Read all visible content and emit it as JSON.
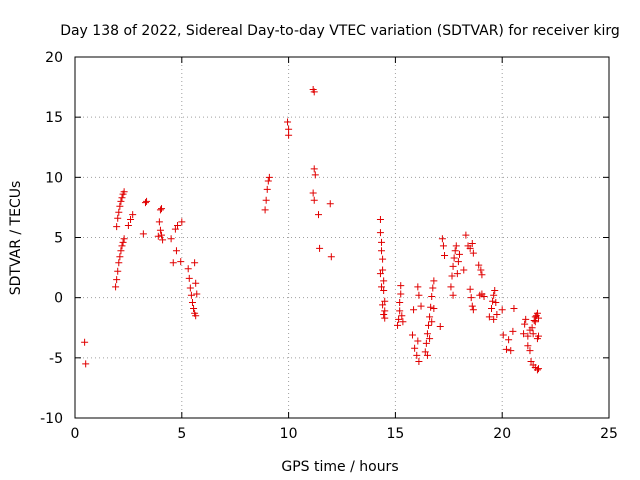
{
  "chart_data": {
    "type": "scatter",
    "title": "Day 138 of 2022, Sidereal Day-to-day VTEC variation (SDTVAR) for receiver kirg",
    "xlabel": "GPS time / hours",
    "ylabel": "SDTVAR / TECUs",
    "xlim": [
      0,
      25
    ],
    "ylim": [
      -10,
      20
    ],
    "x_ticks": [
      0,
      5,
      10,
      15,
      20,
      25
    ],
    "x_tick_labels": [
      "0",
      "5",
      "10",
      "15",
      "20",
      "25"
    ],
    "y_ticks": [
      -10,
      -5,
      0,
      5,
      10,
      15,
      20
    ],
    "y_tick_labels": [
      "-10",
      "-5",
      "0",
      "5",
      "10",
      "15",
      "20"
    ],
    "grid": true,
    "marker": "+",
    "marker_color": "#e00000",
    "series": [
      {
        "name": "SDTVAR",
        "points": [
          [
            0.45,
            -3.7
          ],
          [
            0.5,
            -5.5
          ],
          [
            1.9,
            0.9
          ],
          [
            1.95,
            1.5
          ],
          [
            2.0,
            2.2
          ],
          [
            2.05,
            2.9
          ],
          [
            2.1,
            3.4
          ],
          [
            2.15,
            3.9
          ],
          [
            2.2,
            4.3
          ],
          [
            2.25,
            4.6
          ],
          [
            2.3,
            4.9
          ],
          [
            1.95,
            5.9
          ],
          [
            2.0,
            6.6
          ],
          [
            2.05,
            7.1
          ],
          [
            2.1,
            7.6
          ],
          [
            2.15,
            8.0
          ],
          [
            2.2,
            8.3
          ],
          [
            2.25,
            8.6
          ],
          [
            2.3,
            8.8
          ],
          [
            2.5,
            6.0
          ],
          [
            2.6,
            6.5
          ],
          [
            2.7,
            6.9
          ],
          [
            3.2,
            5.3
          ],
          [
            3.3,
            7.9
          ],
          [
            3.35,
            8.0
          ],
          [
            3.9,
            5.1
          ],
          [
            3.95,
            6.3
          ],
          [
            4.0,
            7.3
          ],
          [
            4.05,
            7.4
          ],
          [
            4.1,
            4.8
          ],
          [
            4.05,
            5.2
          ],
          [
            4.0,
            5.6
          ],
          [
            4.5,
            4.9
          ],
          [
            4.6,
            2.9
          ],
          [
            4.7,
            5.7
          ],
          [
            4.75,
            3.9
          ],
          [
            4.8,
            6.0
          ],
          [
            4.95,
            3.0
          ],
          [
            5.0,
            6.3
          ],
          [
            5.3,
            2.4
          ],
          [
            5.35,
            1.6
          ],
          [
            5.4,
            0.8
          ],
          [
            5.45,
            0.2
          ],
          [
            5.5,
            -0.4
          ],
          [
            5.55,
            -0.9
          ],
          [
            5.6,
            -1.3
          ],
          [
            5.65,
            -1.5
          ],
          [
            5.6,
            2.9
          ],
          [
            5.65,
            1.2
          ],
          [
            5.7,
            0.3
          ],
          [
            8.9,
            7.3
          ],
          [
            8.95,
            8.1
          ],
          [
            9.0,
            9.0
          ],
          [
            9.05,
            9.7
          ],
          [
            9.1,
            10.0
          ],
          [
            9.95,
            14.6
          ],
          [
            10.0,
            13.5
          ],
          [
            10.0,
            14.0
          ],
          [
            11.15,
            17.3
          ],
          [
            11.2,
            17.1
          ],
          [
            11.2,
            10.7
          ],
          [
            11.25,
            10.2
          ],
          [
            11.15,
            8.7
          ],
          [
            11.2,
            8.1
          ],
          [
            11.4,
            6.9
          ],
          [
            11.45,
            4.1
          ],
          [
            11.95,
            7.8
          ],
          [
            12.0,
            3.4
          ],
          [
            14.3,
            6.5
          ],
          [
            14.3,
            5.4
          ],
          [
            14.35,
            4.6
          ],
          [
            14.35,
            3.9
          ],
          [
            14.4,
            3.2
          ],
          [
            14.4,
            2.3
          ],
          [
            14.45,
            1.4
          ],
          [
            14.45,
            0.6
          ],
          [
            14.5,
            -0.3
          ],
          [
            14.5,
            -1.1
          ],
          [
            14.5,
            -1.7
          ],
          [
            14.3,
            2.0
          ],
          [
            14.35,
            0.9
          ],
          [
            14.4,
            -0.6
          ],
          [
            14.45,
            -1.4
          ],
          [
            15.1,
            -2.3
          ],
          [
            15.15,
            -1.8
          ],
          [
            15.2,
            -1.1
          ],
          [
            15.2,
            -0.4
          ],
          [
            15.25,
            0.3
          ],
          [
            15.25,
            1.0
          ],
          [
            15.3,
            -1.5
          ],
          [
            15.35,
            -2.0
          ],
          [
            15.8,
            -3.1
          ],
          [
            15.85,
            -1.0
          ],
          [
            15.9,
            -4.2
          ],
          [
            16.0,
            -4.8
          ],
          [
            16.05,
            -3.6
          ],
          [
            16.1,
            -5.3
          ],
          [
            16.05,
            0.9
          ],
          [
            16.1,
            0.2
          ],
          [
            16.2,
            -0.7
          ],
          [
            16.4,
            -4.5
          ],
          [
            16.45,
            -3.8
          ],
          [
            16.5,
            -3.0
          ],
          [
            16.55,
            -2.3
          ],
          [
            16.6,
            -1.6
          ],
          [
            16.65,
            -0.8
          ],
          [
            16.7,
            0.1
          ],
          [
            16.75,
            0.8
          ],
          [
            16.8,
            1.4
          ],
          [
            16.5,
            -4.8
          ],
          [
            16.6,
            -3.4
          ],
          [
            16.7,
            -2.0
          ],
          [
            16.8,
            -0.9
          ],
          [
            17.1,
            -2.4
          ],
          [
            17.2,
            4.9
          ],
          [
            17.25,
            4.3
          ],
          [
            17.3,
            3.5
          ],
          [
            17.6,
            0.9
          ],
          [
            17.65,
            1.8
          ],
          [
            17.7,
            2.6
          ],
          [
            17.75,
            3.3
          ],
          [
            17.8,
            3.9
          ],
          [
            17.85,
            4.3
          ],
          [
            17.7,
            0.2
          ],
          [
            17.9,
            2.0
          ],
          [
            17.95,
            3.0
          ],
          [
            18.0,
            3.6
          ],
          [
            18.2,
            2.3
          ],
          [
            18.3,
            5.2
          ],
          [
            18.4,
            4.3
          ],
          [
            18.5,
            4.1
          ],
          [
            18.6,
            4.5
          ],
          [
            18.65,
            3.7
          ],
          [
            18.5,
            0.7
          ],
          [
            18.55,
            0.0
          ],
          [
            18.6,
            -0.7
          ],
          [
            18.65,
            -1.0
          ],
          [
            18.9,
            2.7
          ],
          [
            19.0,
            2.3
          ],
          [
            19.05,
            1.9
          ],
          [
            18.95,
            0.2
          ],
          [
            19.05,
            0.3
          ],
          [
            19.15,
            0.1
          ],
          [
            19.4,
            -1.6
          ],
          [
            19.5,
            -0.9
          ],
          [
            19.55,
            -0.3
          ],
          [
            19.6,
            0.2
          ],
          [
            19.65,
            0.6
          ],
          [
            19.7,
            -0.4
          ],
          [
            19.75,
            -1.4
          ],
          [
            19.6,
            -1.8
          ],
          [
            20.0,
            -1.0
          ],
          [
            20.05,
            -3.1
          ],
          [
            20.2,
            -4.3
          ],
          [
            20.3,
            -3.5
          ],
          [
            20.4,
            -4.4
          ],
          [
            20.5,
            -2.8
          ],
          [
            20.55,
            -0.9
          ],
          [
            21.0,
            -3.0
          ],
          [
            21.05,
            -2.2
          ],
          [
            21.1,
            -1.8
          ],
          [
            21.2,
            -3.2
          ],
          [
            21.3,
            -2.7
          ],
          [
            21.2,
            -4.0
          ],
          [
            21.3,
            -4.4
          ],
          [
            21.4,
            -2.5
          ],
          [
            21.45,
            -3.0
          ],
          [
            21.35,
            -5.3
          ],
          [
            21.45,
            -5.6
          ],
          [
            21.55,
            -5.8
          ],
          [
            21.65,
            -6.0
          ],
          [
            21.7,
            -5.9
          ],
          [
            21.5,
            -1.9
          ],
          [
            21.55,
            -1.6
          ],
          [
            21.6,
            -1.5
          ],
          [
            21.65,
            -1.3
          ],
          [
            21.7,
            -1.7
          ],
          [
            21.55,
            -2.0
          ],
          [
            21.65,
            -3.4
          ],
          [
            21.7,
            -3.2
          ]
        ]
      }
    ]
  }
}
